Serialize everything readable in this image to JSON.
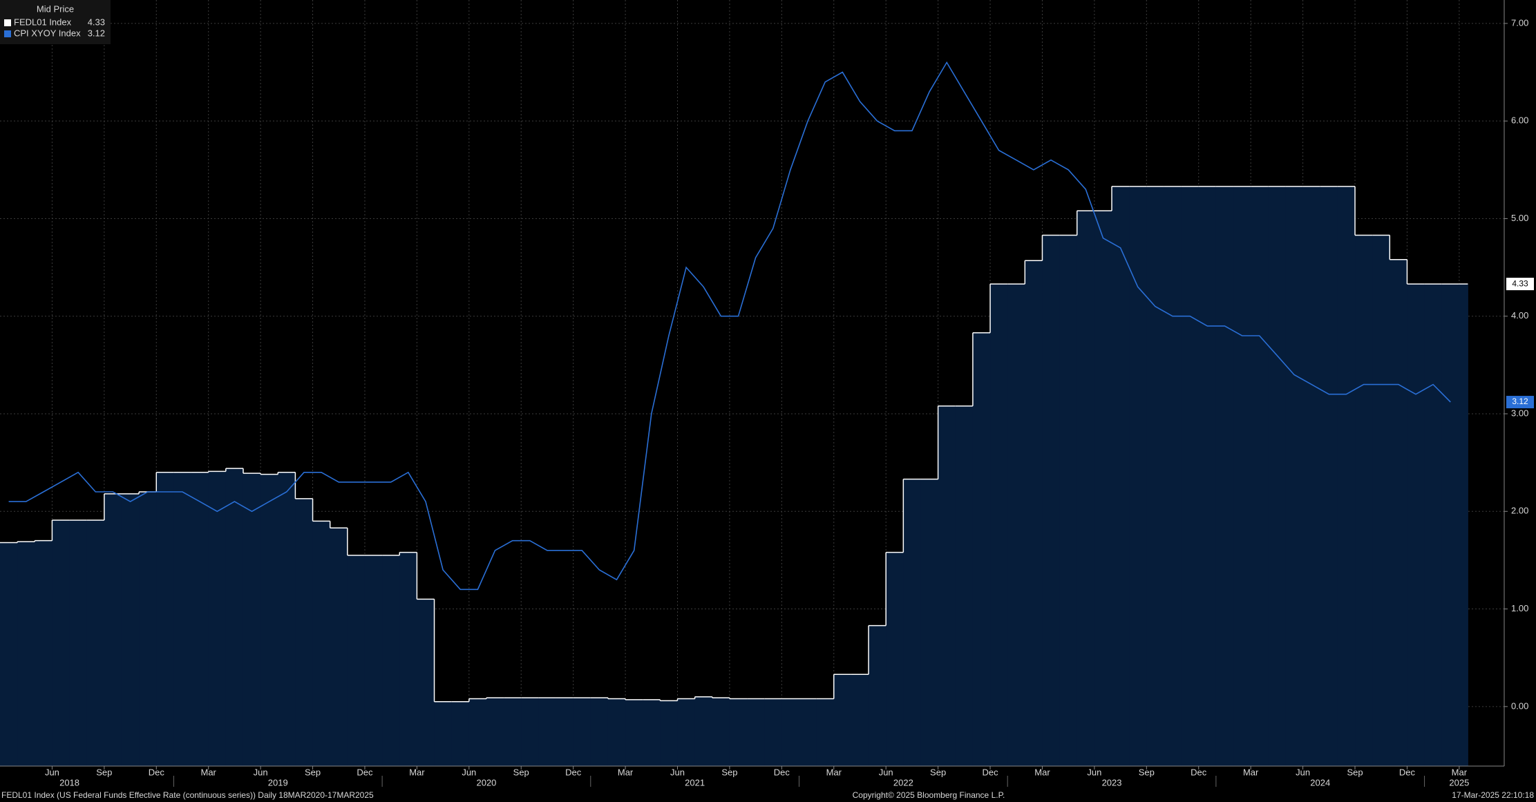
{
  "legend_header": "Mid Price",
  "footer": {
    "left": "FEDL01 Index (US Federal Funds Effective Rate (continuous series))  Daily 18MAR2020-17MAR2025",
    "center": "Copyright© 2025 Bloomberg Finance L.P.",
    "right": "17-Mar-2025 22:10:18"
  },
  "chart_data": {
    "type": "line",
    "x": [
      "2018-03",
      "2018-04",
      "2018-05",
      "2018-06",
      "2018-07",
      "2018-08",
      "2018-09",
      "2018-10",
      "2018-11",
      "2018-12",
      "2019-01",
      "2019-02",
      "2019-03",
      "2019-04",
      "2019-05",
      "2019-06",
      "2019-07",
      "2019-08",
      "2019-09",
      "2019-10",
      "2019-11",
      "2019-12",
      "2020-01",
      "2020-02",
      "2020-03",
      "2020-04",
      "2020-05",
      "2020-06",
      "2020-07",
      "2020-08",
      "2020-09",
      "2020-10",
      "2020-11",
      "2020-12",
      "2021-01",
      "2021-02",
      "2021-03",
      "2021-04",
      "2021-05",
      "2021-06",
      "2021-07",
      "2021-08",
      "2021-09",
      "2021-10",
      "2021-11",
      "2021-12",
      "2022-01",
      "2022-02",
      "2022-03",
      "2022-04",
      "2022-05",
      "2022-06",
      "2022-07",
      "2022-08",
      "2022-09",
      "2022-10",
      "2022-11",
      "2022-12",
      "2023-01",
      "2023-02",
      "2023-03",
      "2023-04",
      "2023-05",
      "2023-06",
      "2023-07",
      "2023-08",
      "2023-09",
      "2023-10",
      "2023-11",
      "2023-12",
      "2024-01",
      "2024-02",
      "2024-03",
      "2024-04",
      "2024-05",
      "2024-06",
      "2024-07",
      "2024-08",
      "2024-09",
      "2024-10",
      "2024-11",
      "2024-12",
      "2025-01",
      "2025-02",
      "2025-03"
    ],
    "series": [
      {
        "name": "FEDL01 Index",
        "color": "#ffffff",
        "area_color": "#061d3a",
        "step": true,
        "values": [
          1.68,
          1.69,
          1.7,
          1.91,
          1.91,
          1.91,
          2.18,
          2.18,
          2.2,
          2.4,
          2.4,
          2.4,
          2.41,
          2.44,
          2.39,
          2.38,
          2.4,
          2.13,
          1.9,
          1.83,
          1.55,
          1.55,
          1.55,
          1.58,
          1.1,
          0.05,
          0.05,
          0.08,
          0.09,
          0.09,
          0.09,
          0.09,
          0.09,
          0.09,
          0.09,
          0.08,
          0.07,
          0.07,
          0.06,
          0.08,
          0.1,
          0.09,
          0.08,
          0.08,
          0.08,
          0.08,
          0.08,
          0.08,
          0.33,
          0.33,
          0.83,
          1.58,
          2.33,
          2.33,
          3.08,
          3.08,
          3.83,
          4.33,
          4.33,
          4.57,
          4.83,
          4.83,
          5.08,
          5.08,
          5.33,
          5.33,
          5.33,
          5.33,
          5.33,
          5.33,
          5.33,
          5.33,
          5.33,
          5.33,
          5.33,
          5.33,
          5.33,
          5.33,
          4.83,
          4.83,
          4.58,
          4.33,
          4.33,
          4.33,
          4.33
        ]
      },
      {
        "name": "CPI XYOY Index",
        "color": "#2a6fd6",
        "step": false,
        "values": [
          2.1,
          2.1,
          2.2,
          2.3,
          2.4,
          2.2,
          2.2,
          2.1,
          2.2,
          2.2,
          2.2,
          2.1,
          2.0,
          2.1,
          2.0,
          2.1,
          2.2,
          2.4,
          2.4,
          2.3,
          2.3,
          2.3,
          2.3,
          2.4,
          2.1,
          1.4,
          1.2,
          1.2,
          1.6,
          1.7,
          1.7,
          1.6,
          1.6,
          1.6,
          1.4,
          1.3,
          1.6,
          3.0,
          3.8,
          4.5,
          4.3,
          4.0,
          4.0,
          4.6,
          4.9,
          5.5,
          6.0,
          6.4,
          6.5,
          6.2,
          6.0,
          5.9,
          5.9,
          6.3,
          6.6,
          6.3,
          6.0,
          5.7,
          5.6,
          5.5,
          5.6,
          5.5,
          5.3,
          4.8,
          4.7,
          4.3,
          4.1,
          4.0,
          4.0,
          3.9,
          3.9,
          3.8,
          3.8,
          3.6,
          3.4,
          3.3,
          3.2,
          3.2,
          3.3,
          3.3,
          3.3,
          3.2,
          3.3,
          3.12,
          null
        ]
      }
    ],
    "ylim": [
      -0.61,
      7.24
    ],
    "yticks": [
      {
        "value": 0,
        "label": "0.00"
      },
      {
        "value": 1,
        "label": "1.00"
      },
      {
        "value": 2,
        "label": "2.00"
      },
      {
        "value": 3,
        "label": "3.00"
      },
      {
        "value": 4,
        "label": "4.00"
      },
      {
        "value": 5,
        "label": "5.00"
      },
      {
        "value": 6,
        "label": "6.00"
      },
      {
        "value": 7,
        "label": "7.00"
      }
    ],
    "xticks": [
      {
        "value": "2018-06",
        "label": "Jun"
      },
      {
        "value": "2018-09",
        "label": "Sep"
      },
      {
        "value": "2018-12",
        "label": "Dec"
      },
      {
        "value": "2019-03",
        "label": "Mar"
      },
      {
        "value": "2019-06",
        "label": "Jun"
      },
      {
        "value": "2019-09",
        "label": "Sep"
      },
      {
        "value": "2019-12",
        "label": "Dec"
      },
      {
        "value": "2020-03",
        "label": "Mar"
      },
      {
        "value": "2020-06",
        "label": "Jun"
      },
      {
        "value": "2020-09",
        "label": "Sep"
      },
      {
        "value": "2020-12",
        "label": "Dec"
      },
      {
        "value": "2021-03",
        "label": "Mar"
      },
      {
        "value": "2021-06",
        "label": "Jun"
      },
      {
        "value": "2021-09",
        "label": "Sep"
      },
      {
        "value": "2021-12",
        "label": "Dec"
      },
      {
        "value": "2022-03",
        "label": "Mar"
      },
      {
        "value": "2022-06",
        "label": "Jun"
      },
      {
        "value": "2022-09",
        "label": "Sep"
      },
      {
        "value": "2022-12",
        "label": "Dec"
      },
      {
        "value": "2023-03",
        "label": "Mar"
      },
      {
        "value": "2023-06",
        "label": "Jun"
      },
      {
        "value": "2023-09",
        "label": "Sep"
      },
      {
        "value": "2023-12",
        "label": "Dec"
      },
      {
        "value": "2024-03",
        "label": "Mar"
      },
      {
        "value": "2024-06",
        "label": "Jun"
      },
      {
        "value": "2024-09",
        "label": "Sep"
      },
      {
        "value": "2024-12",
        "label": "Dec"
      },
      {
        "value": "2025-03",
        "label": "Mar"
      }
    ],
    "year_labels": [
      {
        "value": "2018-07",
        "label": "2018"
      },
      {
        "value": "2019-07",
        "label": "2019"
      },
      {
        "value": "2020-07",
        "label": "2020"
      },
      {
        "value": "2021-07",
        "label": "2021"
      },
      {
        "value": "2022-07",
        "label": "2022"
      },
      {
        "value": "2023-07",
        "label": "2023"
      },
      {
        "value": "2024-07",
        "label": "2024"
      },
      {
        "value": "2025-03",
        "label": "2025"
      }
    ],
    "grid": true
  }
}
